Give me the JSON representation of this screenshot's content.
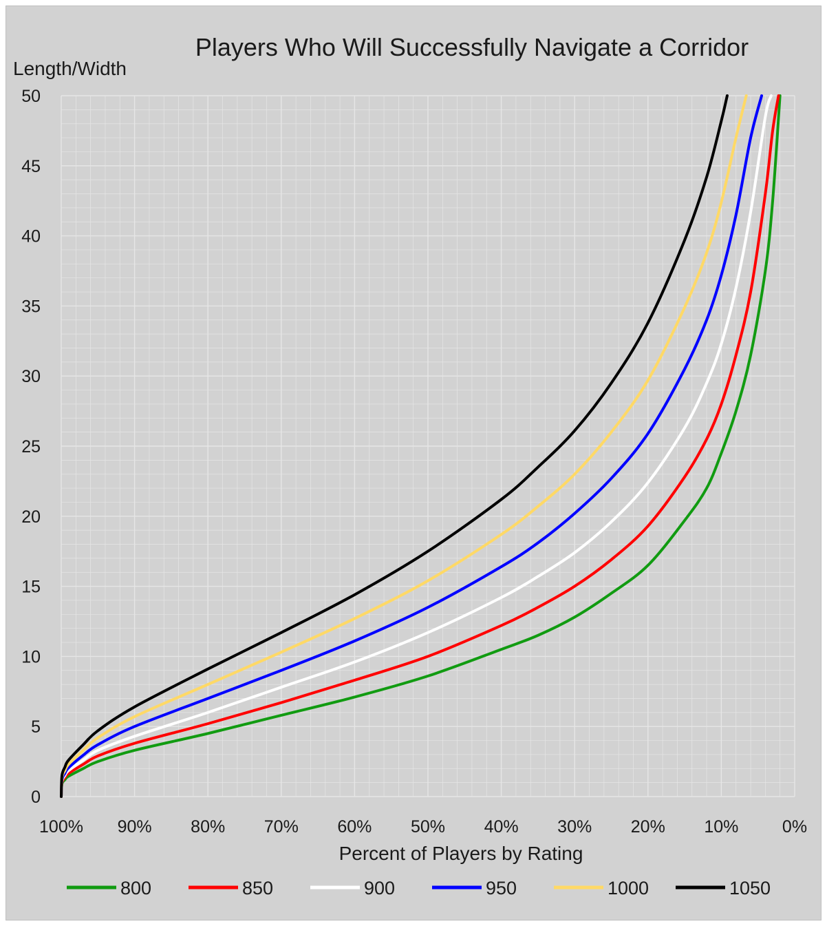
{
  "chart_data": {
    "type": "line",
    "title": "Players Who Will Successfully Navigate a Corridor",
    "ylabel": "Length/Width",
    "xlabel": "Percent of Players by Rating",
    "x_unit": "percent",
    "x_reversed": true,
    "xlim": [
      100,
      0
    ],
    "ylim": [
      0,
      50
    ],
    "x_ticks": [
      100,
      90,
      80,
      70,
      60,
      50,
      40,
      30,
      20,
      10,
      0
    ],
    "x_tick_labels": [
      "100%",
      "90%",
      "80%",
      "70%",
      "60%",
      "50%",
      "40%",
      "30%",
      "20%",
      "10%",
      "0%"
    ],
    "y_ticks": [
      0,
      5,
      10,
      15,
      20,
      25,
      30,
      35,
      40,
      45,
      50
    ],
    "y_tick_labels": [
      "0",
      "5",
      "10",
      "15",
      "20",
      "25",
      "30",
      "35",
      "40",
      "45",
      "50"
    ],
    "grid": true,
    "legend_position": "bottom",
    "background_color": "#d2d2d2",
    "grid_color": "#e6e6e6",
    "series": [
      {
        "name": "800",
        "color": "#119b11",
        "x": [
          100,
          99.9,
          99.5,
          99,
          97,
          95,
          90,
          80,
          70,
          60,
          50,
          40,
          35,
          30,
          25,
          20,
          15,
          12,
          10,
          8,
          6,
          4,
          3,
          2
        ],
        "y": [
          0,
          0.9,
          1.2,
          1.45,
          2.0,
          2.5,
          3.3,
          4.5,
          5.8,
          7.1,
          8.6,
          10.5,
          11.5,
          12.8,
          14.5,
          16.5,
          19.7,
          22.0,
          24.5,
          27.5,
          31.5,
          37.5,
          42.5,
          50
        ]
      },
      {
        "name": "850",
        "color": "#ff0000",
        "x": [
          100,
          99.9,
          99.5,
          99,
          97,
          95,
          90,
          80,
          70,
          60,
          50,
          40,
          35,
          30,
          25,
          20,
          15,
          12,
          10,
          8,
          6,
          4,
          3,
          2.2
        ],
        "y": [
          0,
          1.0,
          1.35,
          1.65,
          2.3,
          2.9,
          3.8,
          5.2,
          6.7,
          8.3,
          10.0,
          12.2,
          13.5,
          15.0,
          16.9,
          19.3,
          22.8,
          25.5,
          28.0,
          31.5,
          36.0,
          43.0,
          47.5,
          50
        ]
      },
      {
        "name": "900",
        "color": "#ffffff",
        "x": [
          100,
          99.9,
          99.5,
          99,
          97,
          95,
          90,
          80,
          70,
          60,
          50,
          40,
          35,
          30,
          25,
          20,
          15,
          12,
          10,
          8,
          6,
          4,
          3.2
        ],
        "y": [
          0,
          1.1,
          1.5,
          1.85,
          2.6,
          3.3,
          4.3,
          6.0,
          7.8,
          9.6,
          11.7,
          14.2,
          15.7,
          17.4,
          19.6,
          22.4,
          26.3,
          29.5,
          32.3,
          36.3,
          41.7,
          48.5,
          50
        ]
      },
      {
        "name": "950",
        "color": "#0000ff",
        "x": [
          100,
          99.9,
          99.5,
          99,
          97,
          95,
          90,
          80,
          70,
          60,
          50,
          40,
          35,
          30,
          25,
          20,
          15,
          12,
          10,
          8,
          6,
          4.5
        ],
        "y": [
          0,
          1.2,
          1.65,
          2.05,
          2.95,
          3.7,
          5.0,
          7.0,
          9.0,
          11.1,
          13.5,
          16.4,
          18.1,
          20.2,
          22.7,
          25.9,
          30.5,
          34.0,
          37.2,
          41.5,
          47.0,
          50
        ]
      },
      {
        "name": "1000",
        "color": "#ffd966",
        "x": [
          100,
          99.9,
          99.5,
          99,
          97,
          95,
          90,
          80,
          70,
          60,
          50,
          40,
          35,
          30,
          25,
          20,
          15,
          12,
          10,
          8,
          6.6
        ],
        "y": [
          0,
          1.35,
          1.85,
          2.3,
          3.3,
          4.2,
          5.7,
          8.0,
          10.3,
          12.7,
          15.4,
          18.7,
          20.7,
          23.0,
          26.0,
          29.7,
          34.9,
          38.8,
          42.4,
          47.0,
          50
        ]
      },
      {
        "name": "1050",
        "color": "#000000",
        "x": [
          100,
          99.9,
          99.5,
          99,
          97,
          95,
          90,
          80,
          70,
          60,
          50,
          40,
          35,
          30,
          25,
          20,
          15,
          12,
          10,
          9.2
        ],
        "y": [
          0,
          1.5,
          2.1,
          2.6,
          3.7,
          4.7,
          6.4,
          9.1,
          11.7,
          14.4,
          17.5,
          21.2,
          23.5,
          26.1,
          29.5,
          33.8,
          39.7,
          44.2,
          48.2,
          50
        ]
      }
    ]
  }
}
